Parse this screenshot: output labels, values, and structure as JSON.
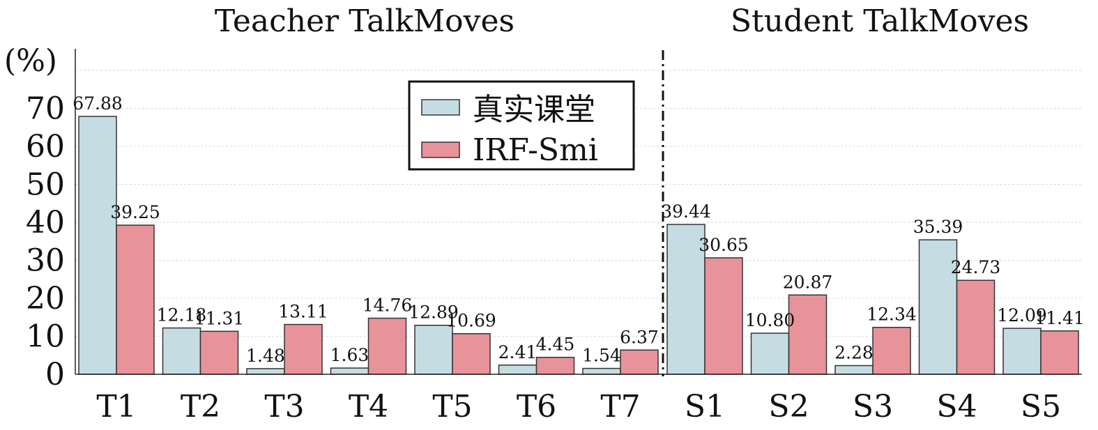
{
  "chart_data": {
    "type": "bar",
    "unit_label": "(%)",
    "group_titles": [
      "Teacher TalkMoves",
      "Student TalkMoves"
    ],
    "categories": [
      "T1",
      "T2",
      "T3",
      "T4",
      "T5",
      "T6",
      "T7",
      "S1",
      "S2",
      "S3",
      "S4",
      "S5"
    ],
    "series": [
      {
        "name": "真实课堂",
        "color": "#c5dde2",
        "values": [
          67.88,
          12.18,
          1.48,
          1.63,
          12.89,
          2.41,
          1.54,
          39.44,
          10.8,
          2.28,
          35.39,
          12.09
        ],
        "labels": [
          "67.88",
          "12.18",
          "1.48",
          "1.63",
          "12.89",
          "2.41",
          "1.54",
          "39.44",
          "10.80",
          "2.28",
          "35.39",
          "12.09"
        ]
      },
      {
        "name": "IRF-Smi",
        "color": "#e8939a",
        "values": [
          39.25,
          11.31,
          13.11,
          14.76,
          10.69,
          4.45,
          6.37,
          30.65,
          20.87,
          12.34,
          24.73,
          11.41
        ],
        "labels": [
          "39.25",
          "11.31",
          "13.11",
          "14.76",
          "10.69",
          "4.45",
          "6.37",
          "30.65",
          "20.87",
          "12.34",
          "24.73",
          "11.41"
        ]
      }
    ],
    "yticks": [
      0,
      10,
      20,
      30,
      40,
      50,
      60,
      70
    ],
    "ylim": [
      0,
      85
    ],
    "grid": true,
    "legend_position": "upper-center"
  }
}
